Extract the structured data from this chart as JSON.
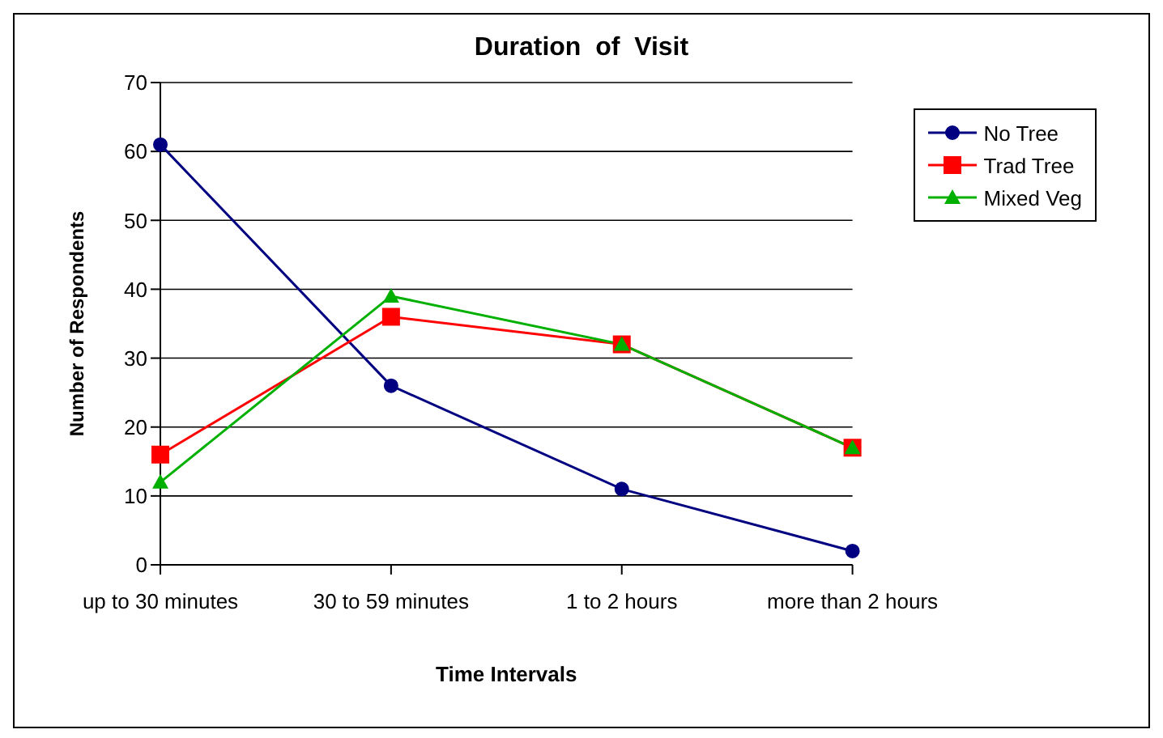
{
  "chart_data": {
    "type": "line",
    "title": "Duration  of  Visit",
    "xlabel": "Time  Intervals",
    "ylabel": "Number  of  Respondents",
    "categories": [
      "up  to  30  minutes",
      "30  to  59  minutes",
      "1  to  2  hours",
      "more  than  2  hours"
    ],
    "series": [
      {
        "name": "No Tree",
        "color": "#000080",
        "marker": "circle",
        "values": [
          61,
          26,
          11,
          2
        ]
      },
      {
        "name": "Trad Tree",
        "color": "#ff0000",
        "marker": "square",
        "values": [
          16,
          36,
          32,
          17
        ]
      },
      {
        "name": "Mixed Veg",
        "color": "#00b000",
        "marker": "triangle",
        "values": [
          12,
          39,
          32,
          17
        ]
      }
    ],
    "ylim": [
      0,
      70
    ],
    "yticks": [
      0,
      10,
      20,
      30,
      40,
      50,
      60,
      70
    ],
    "grid": "y",
    "legend": "top right",
    "line_style": "solid"
  }
}
